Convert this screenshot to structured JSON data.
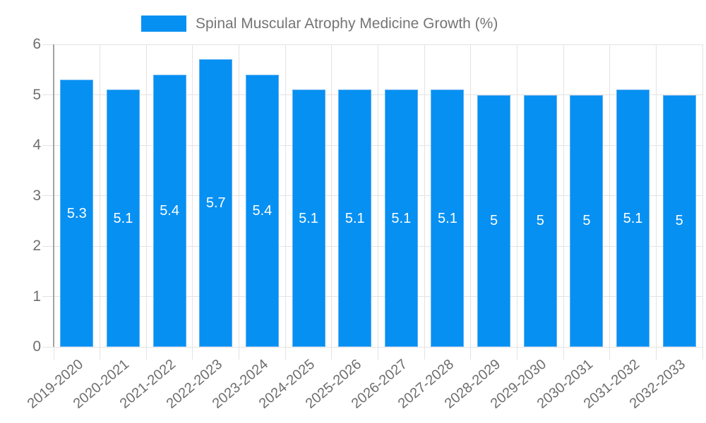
{
  "chart_data": {
    "type": "bar",
    "title": "Spinal Muscular Atrophy Medicine Growth (%)",
    "categories": [
      "2019-2020",
      "2020-2021",
      "2021-2022",
      "2022-2023",
      "2023-2024",
      "2024-2025",
      "2025-2026",
      "2026-2027",
      "2027-2028",
      "2028-2029",
      "2029-2030",
      "2030-2031",
      "2031-2032",
      "2032-2033"
    ],
    "values": [
      5.3,
      5.1,
      5.4,
      5.7,
      5.4,
      5.1,
      5.1,
      5.1,
      5.1,
      5,
      5,
      5,
      5.1,
      5
    ],
    "xlabel": "",
    "ylabel": "",
    "ylim": [
      0,
      6
    ],
    "yticks": [
      0,
      1,
      2,
      3,
      4,
      5,
      6
    ],
    "grid": true,
    "legend_position": "top",
    "colors": {
      "bar_fill": "#0690f2",
      "bar_border": "#5fb0f5",
      "value_label": "#ffffff",
      "gridline": "#e3e3e3",
      "axis_line": "#a3a3a3",
      "tick_label": "#6e6e6e",
      "legend_text": "#757575",
      "background": "#ffffff"
    }
  }
}
